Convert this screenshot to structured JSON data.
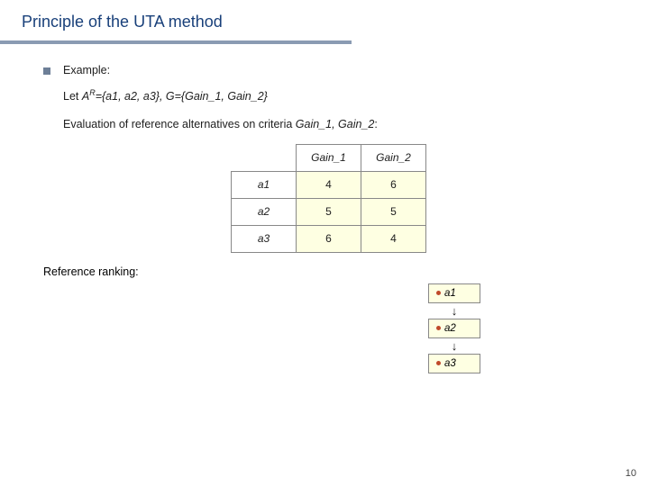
{
  "title": "Principle of the UTA method",
  "page_number": "10",
  "example_label": "Example:",
  "let_line": {
    "prefix": "Let ",
    "ar_sym": "A",
    "ar_sup": "R",
    "ar_set": "={a1, a2, a3},   G={Gain_1, Gain_2}"
  },
  "eval_line": "Evaluation of reference alternatives on criteria Gain_1, Gain_2:",
  "table": {
    "columns": [
      "Gain_1",
      "Gain_2"
    ],
    "rows": [
      {
        "label": "a1",
        "vals": [
          "4",
          "6"
        ]
      },
      {
        "label": "a2",
        "vals": [
          "5",
          "5"
        ]
      },
      {
        "label": "a3",
        "vals": [
          "6",
          "4"
        ]
      }
    ],
    "cell_bg": "#feffe2",
    "border_color": "#888888"
  },
  "ref_ranking_label": "Reference ranking:",
  "ranking": [
    "a1",
    "a2",
    "a3"
  ],
  "ranking_arrow": "↓",
  "colors": {
    "title": "#19407a",
    "rule": "#8a9bb3",
    "bullet": "#6d7f97",
    "dot": "#c04a2a"
  }
}
